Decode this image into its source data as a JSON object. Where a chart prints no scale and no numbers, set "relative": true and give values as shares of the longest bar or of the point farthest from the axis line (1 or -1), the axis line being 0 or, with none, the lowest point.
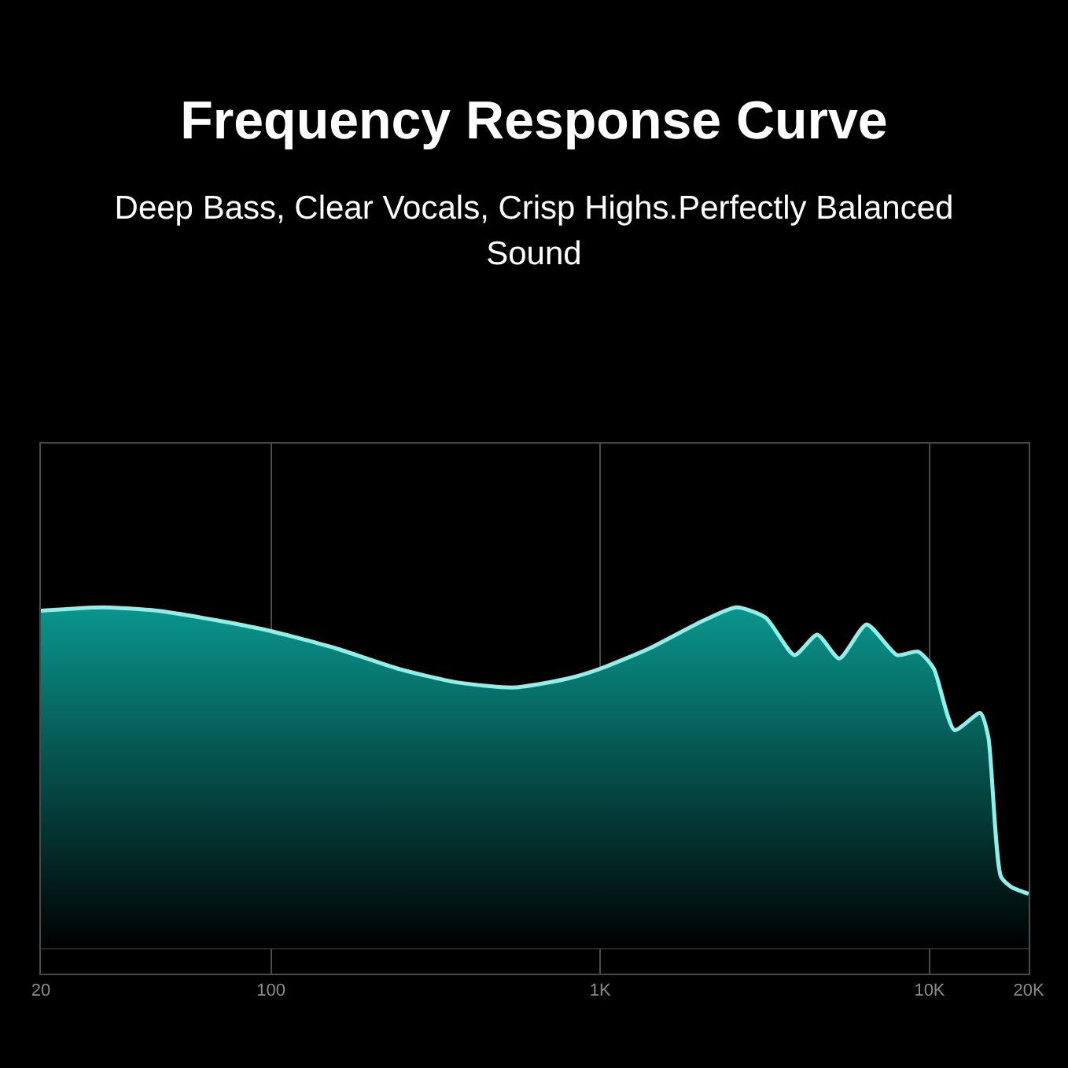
{
  "chart_data": {
    "type": "area",
    "title": "Frequency Response Curve",
    "subtitle": "Deep Bass, Clear Vocals, Crisp Highs.Perfectly Balanced Sound",
    "relative": true,
    "log": "x",
    "grid": "x",
    "xlim": [
      20,
      20000
    ],
    "xticks": [
      20,
      100,
      {
        "value": 1000,
        "label": "1K"
      },
      {
        "value": 10000,
        "label": "10K"
      },
      {
        "value": 20000,
        "label": "20K"
      }
    ],
    "x": [
      20,
      31,
      45,
      70,
      100,
      157,
      243,
      366,
      548,
      788,
      1000,
      1414,
      2046,
      2592,
      3176,
      3888,
      4560,
      5320,
      6440,
      7960,
      9240,
      10300,
      11900,
      14260,
      15080,
      16480,
      17720,
      20000
    ],
    "series": [
      {
        "color": "#8ff0ea",
        "values": [
          0.99,
          1.0,
          0.99,
          0.96,
          0.93,
          0.88,
          0.82,
          0.78,
          0.765,
          0.79,
          0.82,
          0.88,
          0.96,
          1.0,
          0.97,
          0.86,
          0.92,
          0.85,
          0.95,
          0.86,
          0.87,
          0.82,
          0.64,
          0.69,
          0.62,
          0.21,
          0.18,
          0.16
        ]
      }
    ]
  }
}
